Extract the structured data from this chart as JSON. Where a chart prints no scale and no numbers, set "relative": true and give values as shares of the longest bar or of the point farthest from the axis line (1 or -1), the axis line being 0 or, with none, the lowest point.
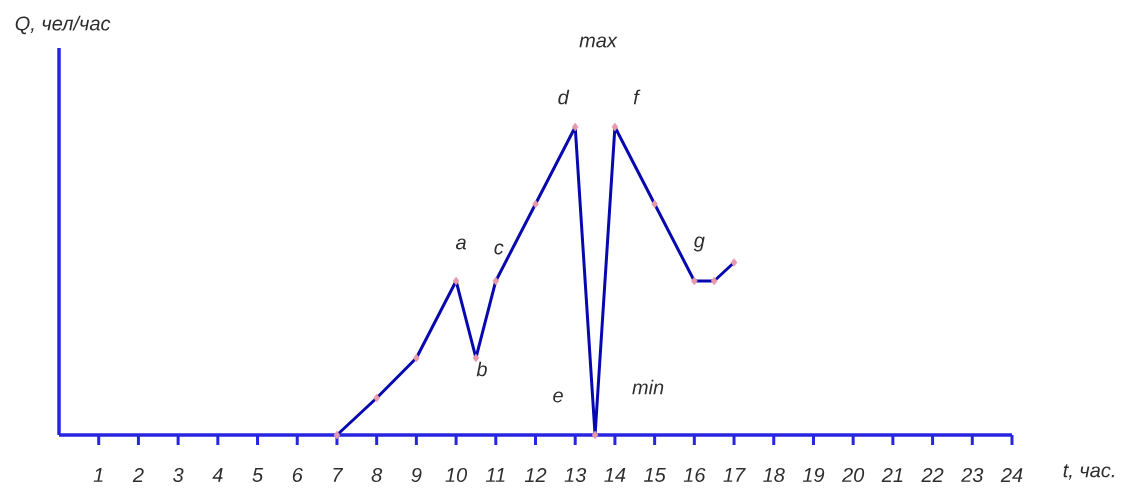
{
  "chart_data": {
    "type": "line",
    "xlabel": "t, час.",
    "ylabel": "Q, чел/час",
    "relative": true,
    "x": [
      7,
      8,
      9,
      10,
      10.5,
      11,
      12,
      13,
      13.5,
      14,
      15,
      16,
      16.5,
      17
    ],
    "values": [
      0,
      0.12,
      0.25,
      0.5,
      0.25,
      0.5,
      0.75,
      1,
      0,
      1,
      0.75,
      0.5,
      0.5,
      0.56
    ],
    "color": "#0808b0",
    "colors": [
      "#e89aac",
      "#e89aac",
      "#e89aac",
      "#e89aac",
      "#e89aac",
      "#e89aac",
      "#e89aac",
      "#e89aac",
      "#e89aac",
      "#e89aac",
      "#e89aac",
      "#e89aac",
      "#e89aac",
      "#e89aac"
    ],
    "marker": "diamond",
    "line_style": "solid",
    "xlim": [
      0,
      24
    ],
    "xticks": [
      1,
      2,
      3,
      4,
      5,
      6,
      7,
      8,
      9,
      10,
      11,
      12,
      13,
      14,
      15,
      16,
      17,
      18,
      19,
      20,
      21,
      22,
      23,
      24
    ],
    "annotations": [
      {
        "text": "a",
        "x": 10,
        "y": 0.5
      },
      {
        "text": "b",
        "x": 10.5,
        "y": 0.25
      },
      {
        "text": "c",
        "x": 11,
        "y": 0.5
      },
      {
        "text": "d",
        "x": 13,
        "y": 1
      },
      {
        "text": "e",
        "x": 13.5,
        "y": 0
      },
      {
        "text": "f",
        "x": 14,
        "y": 1
      },
      {
        "text": "g",
        "x": 16,
        "y": 0.5
      },
      "max",
      {
        "text": "min",
        "x": 13.5,
        "y": 0
      }
    ]
  }
}
